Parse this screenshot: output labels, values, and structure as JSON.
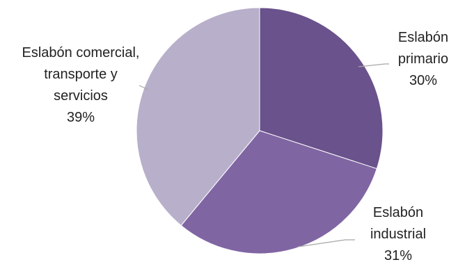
{
  "chart_data": {
    "type": "pie",
    "title": "",
    "start_angle_deg": 0,
    "direction": "clockwise",
    "slices": [
      {
        "label_lines": [
          "Eslabón",
          "primario"
        ],
        "value": 30,
        "value_label": "30%",
        "color": "#6a528c"
      },
      {
        "label_lines": [
          "Eslabón",
          "industrial"
        ],
        "value": 31,
        "value_label": "31%",
        "color": "#8065a3"
      },
      {
        "label_lines": [
          "Eslabón comercial,",
          "transporte y",
          "servicios"
        ],
        "value": 39,
        "value_label": "39%",
        "color": "#b8afca"
      }
    ],
    "leader_line_color": "#a6a6a6",
    "legend": "none"
  }
}
